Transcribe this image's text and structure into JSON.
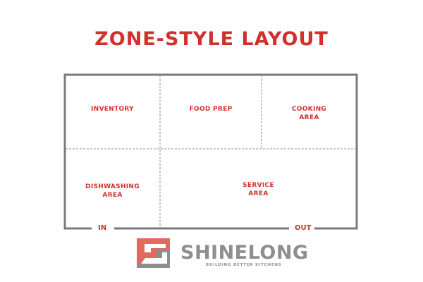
{
  "title": "ZONE-STYLE LAYOUT",
  "zones": {
    "inventory": "INVENTORY",
    "food_prep": "FOOD PREP",
    "cooking": [
      "COOKING",
      "AREA"
    ],
    "dishwashing": [
      "DISHWASHING",
      "AREA"
    ],
    "service": [
      "SERVICE",
      "AREA"
    ]
  },
  "entrances": {
    "in": "IN",
    "out": "OUT"
  },
  "logo": {
    "name": "SHINELONG",
    "tagline": "BUILDING BETTER KITCHENS"
  },
  "colors": {
    "accent": "#d0312d",
    "wall": "#787a82",
    "logo_red": "#e06a5f",
    "logo_gray": "#8c8e8f"
  }
}
